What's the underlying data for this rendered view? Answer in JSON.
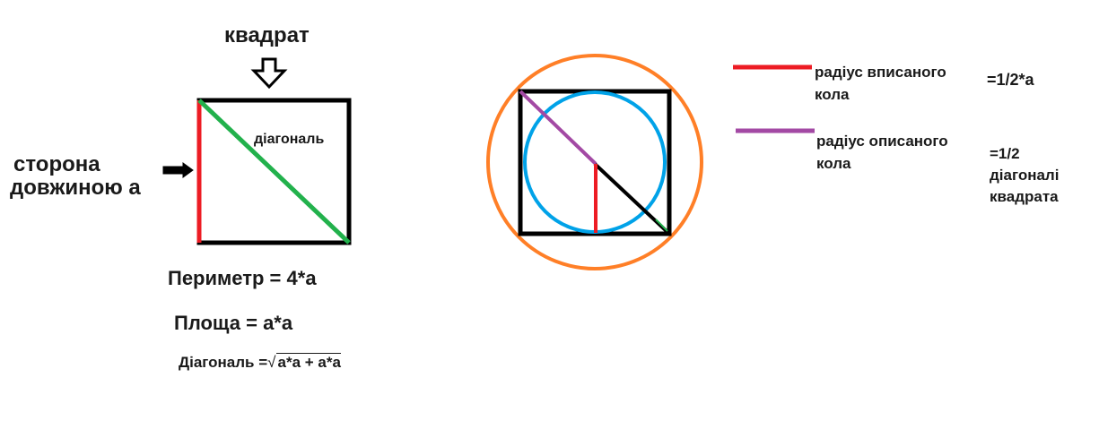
{
  "left_figure": {
    "title": "квадрат",
    "side_label_line1": "сторона",
    "side_label_line2": "довжиною а",
    "diagonal_label": "діагональ",
    "perimeter": "Периметр = 4*а",
    "area": "Площа = а*а",
    "diagonal_prefix": "Діагональ =",
    "diagonal_root_symbol": "√",
    "diagonal_radicand": "а*а + а*а"
  },
  "legend": {
    "inscribed_label": "радіус вписаного кола",
    "inscribed_value": "=1/2*а",
    "circumscribed_label": "радіус описаного кола",
    "circumscribed_value": "=1/2 діагоналі квадрата"
  },
  "colors": {
    "side": "#ed1c24",
    "diagonal": "#22b14c",
    "outline": "#000000",
    "circumscribed_circle": "#ff7f27",
    "inscribed_circle": "#00a2e8",
    "circumscribed_radius": "#a349a4",
    "inscribed_radius": "#ed1c24"
  }
}
